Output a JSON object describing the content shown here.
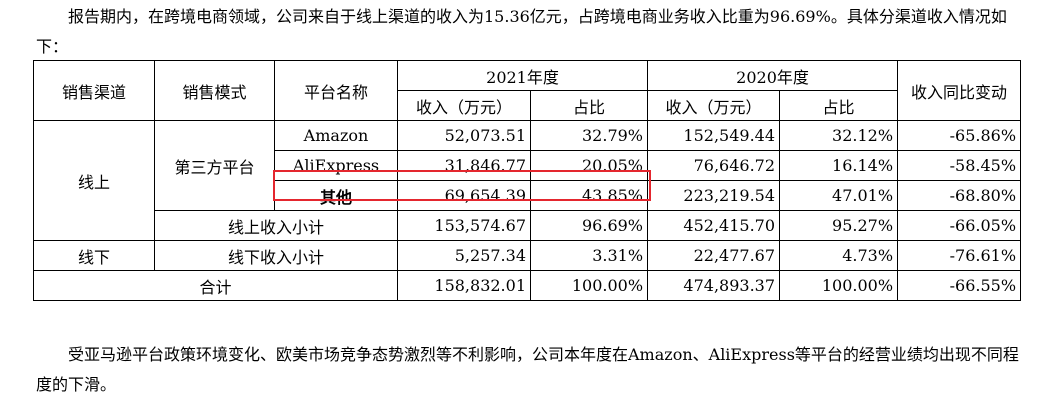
{
  "paragraph_top": "报告期内，在跨境电商领域，公司来自于线上渠道的收入为15.36亿元，占跨境电商业务收入比重为96.69%。具体分渠道收入情况如下：",
  "table": {
    "headers": {
      "channel": "销售渠道",
      "mode": "销售模式",
      "platform": "平台名称",
      "year_2021": "2021年度",
      "year_2020": "2020年度",
      "yoy": "收入同比变动",
      "revenue": "收入（万元）",
      "share": "占比"
    },
    "online_label": "线上",
    "third_party_label": "第三方平台",
    "rows": [
      {
        "platform": "Amazon",
        "rev_2021": "52,073.51",
        "share_2021": "32.79%",
        "rev_2020": "152,549.44",
        "share_2020": "32.12%",
        "yoy": "-65.86%"
      },
      {
        "platform": "AliExpress",
        "rev_2021": "31,846.77",
        "share_2021": "20.05%",
        "rev_2020": "76,646.72",
        "share_2020": "16.14%",
        "yoy": "-58.45%"
      },
      {
        "platform": "其他",
        "rev_2021": "69,654.39",
        "share_2021": "43.85%",
        "rev_2020": "223,219.54",
        "share_2020": "47.01%",
        "yoy": "-68.80%"
      }
    ],
    "online_subtotal": {
      "label": "线上收入小计",
      "rev_2021": "153,574.67",
      "share_2021": "96.69%",
      "rev_2020": "452,415.70",
      "share_2020": "95.27%",
      "yoy": "-66.05%"
    },
    "offline": {
      "channel": "线下",
      "label": "线下收入小计",
      "rev_2021": "5,257.34",
      "share_2021": "3.31%",
      "rev_2020": "22,477.67",
      "share_2020": "4.73%",
      "yoy": "-76.61%"
    },
    "total": {
      "label": "合计",
      "rev_2021": "158,832.01",
      "share_2021": "100.00%",
      "rev_2020": "474,893.37",
      "share_2020": "100.00%",
      "yoy": "-66.55%"
    },
    "highlight_color": "#e4262e"
  },
  "paragraph_bottom": "受亚马逊平台政策环境变化、欧美市场竞争态势激烈等不利影响，公司本年度在Amazon、AliExpress等平台的经营业绩均出现不同程度的下滑。"
}
